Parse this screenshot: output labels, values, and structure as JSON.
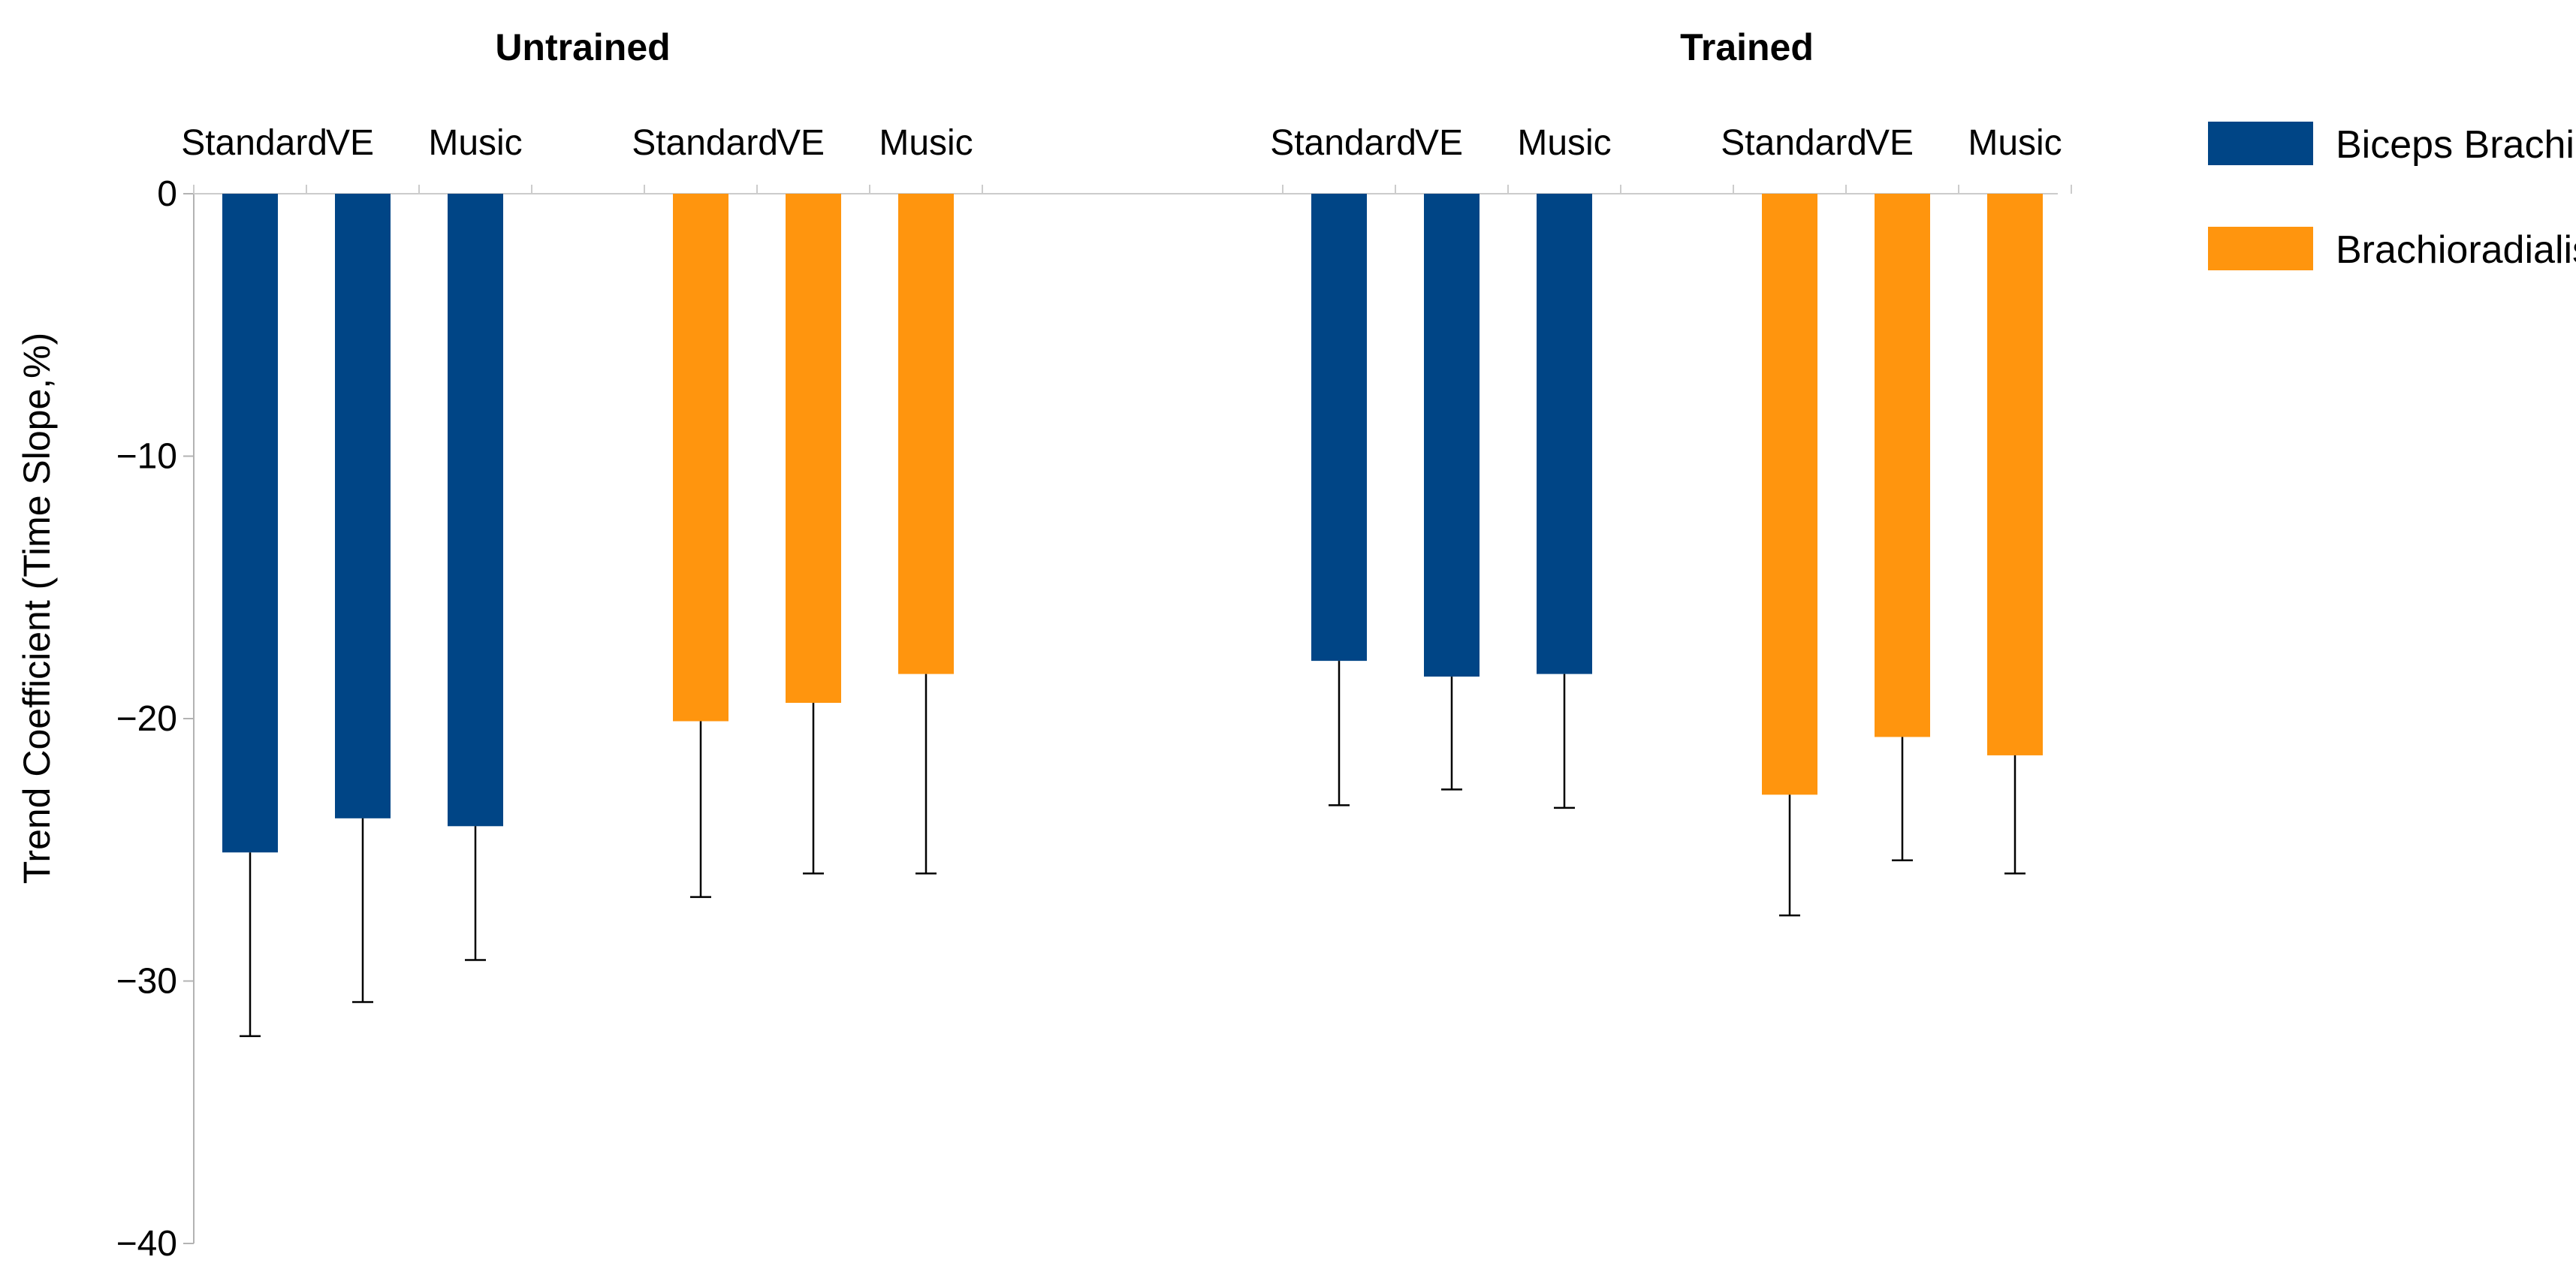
{
  "chart_data": {
    "type": "bar",
    "ylabel": "Trend Coefficient (Time Slope,%)",
    "ylim": [
      -40,
      0
    ],
    "yticks": [
      0,
      -10,
      -20,
      -30,
      -40
    ],
    "grid": false,
    "legend_position": "top-right",
    "legend": [
      {
        "name": "Biceps Brachii",
        "color": "#004586"
      },
      {
        "name": "Brachioradialis",
        "color": "#ff950e"
      }
    ],
    "groups": [
      {
        "title": "Untrained",
        "subgroups": [
          {
            "muscle": "Biceps Brachii",
            "color": "#004586",
            "categories": [
              "Standard",
              "VE",
              "Music"
            ],
            "values": [
              -25.1,
              -23.8,
              -24.1
            ],
            "error_low": [
              -32.1,
              -30.8,
              -29.2
            ]
          },
          {
            "muscle": "Brachioradialis",
            "color": "#ff950e",
            "categories": [
              "Standard",
              "VE",
              "Music"
            ],
            "values": [
              -20.1,
              -19.4,
              -18.3
            ],
            "error_low": [
              -26.8,
              -25.9,
              -25.9
            ]
          }
        ]
      },
      {
        "title": "Trained",
        "subgroups": [
          {
            "muscle": "Biceps Brachii",
            "color": "#004586",
            "categories": [
              "Standard",
              "VE",
              "Music"
            ],
            "values": [
              -17.8,
              -18.4,
              -18.3
            ],
            "error_low": [
              -23.3,
              -22.7,
              -23.4
            ]
          },
          {
            "muscle": "Brachioradialis",
            "color": "#ff950e",
            "categories": [
              "Standard",
              "VE",
              "Music"
            ],
            "values": [
              -22.9,
              -20.7,
              -21.4
            ],
            "error_low": [
              -27.5,
              -25.4,
              -25.9
            ]
          }
        ]
      }
    ]
  }
}
